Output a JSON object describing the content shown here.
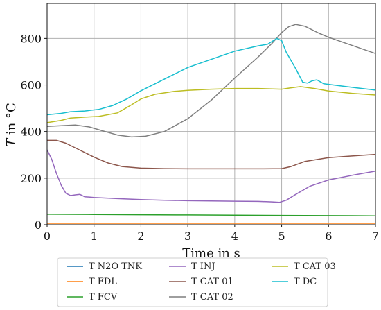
{
  "chart_data": {
    "type": "line",
    "xlabel": "Time in s",
    "ylabel": "T in °C",
    "ylabel_parts": {
      "symbol": "T",
      "rest": " in °C"
    },
    "xlim": [
      0,
      7
    ],
    "ylim": [
      0,
      950
    ],
    "x_ticks": [
      0,
      1,
      2,
      3,
      4,
      5,
      6,
      7
    ],
    "x_tick_labels": [
      "0",
      "1",
      "2",
      "3",
      "4",
      "5",
      "6",
      "7"
    ],
    "y_ticks": [
      0,
      200,
      400,
      600,
      800
    ],
    "y_tick_labels": [
      "0",
      "200",
      "400",
      "600",
      "800"
    ],
    "grid": true,
    "legend_position": "bottom-outside",
    "series": [
      {
        "name": "T N2O TNK",
        "color": "#1f77b4",
        "points": []
      },
      {
        "name": "T FDL",
        "color": "#ff7f0e",
        "points": [
          [
            0,
            6
          ],
          [
            1,
            6
          ],
          [
            2,
            6
          ],
          [
            3,
            6
          ],
          [
            4,
            6
          ],
          [
            5,
            6
          ],
          [
            6,
            6
          ],
          [
            7,
            6
          ]
        ]
      },
      {
        "name": "T FCV",
        "color": "#2ca02c",
        "points": [
          [
            0,
            45
          ],
          [
            1,
            44
          ],
          [
            2,
            43
          ],
          [
            3,
            42
          ],
          [
            4,
            41
          ],
          [
            5,
            40
          ],
          [
            6,
            39
          ],
          [
            7,
            38
          ]
        ]
      },
      {
        "name": "T INJ",
        "color": "#9467bd",
        "points": [
          [
            0,
            322
          ],
          [
            0.1,
            280
          ],
          [
            0.2,
            220
          ],
          [
            0.3,
            170
          ],
          [
            0.4,
            135
          ],
          [
            0.5,
            125
          ],
          [
            0.6,
            128
          ],
          [
            0.7,
            130
          ],
          [
            0.8,
            120
          ],
          [
            1.0,
            117
          ],
          [
            1.5,
            112
          ],
          [
            2,
            108
          ],
          [
            2.5,
            105
          ],
          [
            3,
            103
          ],
          [
            3.5,
            102
          ],
          [
            4,
            101
          ],
          [
            4.5,
            100
          ],
          [
            4.8,
            98
          ],
          [
            4.95,
            96
          ],
          [
            5.1,
            105
          ],
          [
            5.3,
            130
          ],
          [
            5.6,
            165
          ],
          [
            6,
            192
          ],
          [
            6.5,
            212
          ],
          [
            7,
            230
          ]
        ]
      },
      {
        "name": "T CAT 01",
        "color": "#8c564b",
        "points": [
          [
            0,
            362
          ],
          [
            0.2,
            362
          ],
          [
            0.4,
            350
          ],
          [
            0.7,
            320
          ],
          [
            1,
            290
          ],
          [
            1.3,
            265
          ],
          [
            1.6,
            250
          ],
          [
            2,
            243
          ],
          [
            2.5,
            241
          ],
          [
            3,
            240
          ],
          [
            4,
            240
          ],
          [
            4.5,
            240
          ],
          [
            5,
            241
          ],
          [
            5.2,
            250
          ],
          [
            5.5,
            272
          ],
          [
            6,
            288
          ],
          [
            6.5,
            295
          ],
          [
            7,
            302
          ]
        ]
      },
      {
        "name": "T CAT 02",
        "color": "#7f7f7f",
        "points": [
          [
            0,
            422
          ],
          [
            0.3,
            425
          ],
          [
            0.6,
            428
          ],
          [
            0.9,
            420
          ],
          [
            1.2,
            402
          ],
          [
            1.5,
            385
          ],
          [
            1.8,
            377
          ],
          [
            2.1,
            380
          ],
          [
            2.5,
            400
          ],
          [
            3,
            455
          ],
          [
            3.5,
            535
          ],
          [
            4,
            630
          ],
          [
            4.5,
            720
          ],
          [
            4.8,
            780
          ],
          [
            5.0,
            825
          ],
          [
            5.15,
            850
          ],
          [
            5.3,
            860
          ],
          [
            5.5,
            852
          ],
          [
            5.8,
            822
          ],
          [
            6,
            805
          ],
          [
            6.5,
            770
          ],
          [
            7,
            735
          ]
        ]
      },
      {
        "name": "T CAT 03",
        "color": "#bcbd22",
        "points": [
          [
            0,
            438
          ],
          [
            0.3,
            448
          ],
          [
            0.5,
            458
          ],
          [
            0.8,
            462
          ],
          [
            1.1,
            465
          ],
          [
            1.5,
            480
          ],
          [
            1.8,
            515
          ],
          [
            2,
            540
          ],
          [
            2.3,
            560
          ],
          [
            2.7,
            572
          ],
          [
            3,
            577
          ],
          [
            3.5,
            582
          ],
          [
            4,
            585
          ],
          [
            4.5,
            585
          ],
          [
            5,
            582
          ],
          [
            5.2,
            588
          ],
          [
            5.4,
            593
          ],
          [
            5.7,
            585
          ],
          [
            6,
            574
          ],
          [
            6.5,
            564
          ],
          [
            7,
            557
          ]
        ]
      },
      {
        "name": "T DC",
        "color": "#17becf",
        "points": [
          [
            0,
            472
          ],
          [
            0.3,
            478
          ],
          [
            0.5,
            485
          ],
          [
            0.8,
            488
          ],
          [
            1.1,
            495
          ],
          [
            1.4,
            512
          ],
          [
            1.7,
            540
          ],
          [
            2,
            575
          ],
          [
            2.5,
            625
          ],
          [
            3,
            675
          ],
          [
            3.5,
            710
          ],
          [
            4,
            745
          ],
          [
            4.5,
            768
          ],
          [
            4.7,
            775
          ],
          [
            4.9,
            800
          ],
          [
            5.0,
            790
          ],
          [
            5.1,
            740
          ],
          [
            5.3,
            670
          ],
          [
            5.45,
            612
          ],
          [
            5.55,
            608
          ],
          [
            5.65,
            618
          ],
          [
            5.75,
            622
          ],
          [
            5.9,
            605
          ],
          [
            6.1,
            600
          ],
          [
            6.5,
            590
          ],
          [
            7,
            578
          ]
        ]
      }
    ]
  }
}
